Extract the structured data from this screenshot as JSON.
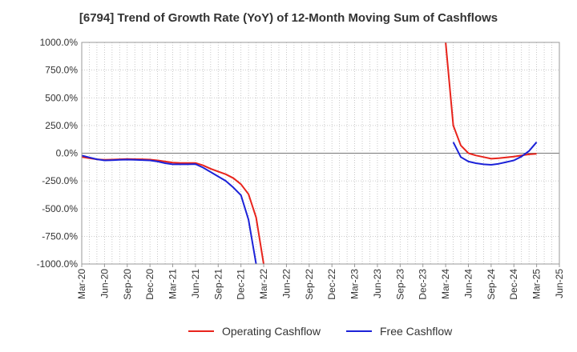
{
  "chart_data": {
    "type": "line",
    "title": "[6794]  Trend of Growth Rate (YoY) of 12-Month Moving Sum of Cashflows",
    "xlabel": "",
    "ylabel": "",
    "ylim": [
      -1000,
      1000
    ],
    "y_ticks": [
      1000,
      750,
      500,
      250,
      0,
      -250,
      -500,
      -750,
      -1000
    ],
    "y_tick_labels": [
      "1000.0%",
      "750.0%",
      "500.0%",
      "250.0%",
      "0.0%",
      "-250.0%",
      "-500.0%",
      "-750.0%",
      "-1000.0%"
    ],
    "x_tick_labels": [
      "Mar-20",
      "Jun-20",
      "Sep-20",
      "Dec-20",
      "Mar-21",
      "Jun-21",
      "Sep-21",
      "Dec-21",
      "Mar-22",
      "Jun-22",
      "Sep-22",
      "Dec-22",
      "Mar-23",
      "Jun-23",
      "Sep-23",
      "Dec-23",
      "Mar-24",
      "Jun-24",
      "Sep-24",
      "Dec-24",
      "Mar-25",
      "Jun-25"
    ],
    "grid": true,
    "legend_position": "bottom",
    "series": [
      {
        "name": "Operating Cashflow",
        "color": "#e8241c",
        "points": [
          {
            "x": "Mar-20",
            "y": -35
          },
          {
            "x": "Apr-20",
            "y": -45
          },
          {
            "x": "May-20",
            "y": -55
          },
          {
            "x": "Jun-20",
            "y": -60
          },
          {
            "x": "Jul-20",
            "y": -58
          },
          {
            "x": "Aug-20",
            "y": -55
          },
          {
            "x": "Sep-20",
            "y": -52
          },
          {
            "x": "Oct-20",
            "y": -54
          },
          {
            "x": "Nov-20",
            "y": -55
          },
          {
            "x": "Dec-20",
            "y": -58
          },
          {
            "x": "Jan-21",
            "y": -65
          },
          {
            "x": "Feb-21",
            "y": -75
          },
          {
            "x": "Mar-21",
            "y": -85
          },
          {
            "x": "Apr-21",
            "y": -88
          },
          {
            "x": "May-21",
            "y": -88
          },
          {
            "x": "Jun-21",
            "y": -88
          },
          {
            "x": "Jul-21",
            "y": -110
          },
          {
            "x": "Aug-21",
            "y": -140
          },
          {
            "x": "Sep-21",
            "y": -165
          },
          {
            "x": "Oct-21",
            "y": -190
          },
          {
            "x": "Nov-21",
            "y": -225
          },
          {
            "x": "Dec-21",
            "y": -280
          },
          {
            "x": "Jan-22",
            "y": -370
          },
          {
            "x": "Feb-22",
            "y": -580
          },
          {
            "x": "Mar-22",
            "y": -1000
          },
          {
            "x": "Mar-24",
            "y": 1000
          },
          {
            "x": "Apr-24",
            "y": 250
          },
          {
            "x": "May-24",
            "y": 70
          },
          {
            "x": "Jun-24",
            "y": 0
          },
          {
            "x": "Jul-24",
            "y": -20
          },
          {
            "x": "Aug-24",
            "y": -35
          },
          {
            "x": "Sep-24",
            "y": -50
          },
          {
            "x": "Oct-24",
            "y": -45
          },
          {
            "x": "Nov-24",
            "y": -38
          },
          {
            "x": "Dec-24",
            "y": -30
          },
          {
            "x": "Jan-25",
            "y": -20
          },
          {
            "x": "Feb-25",
            "y": -10
          },
          {
            "x": "Mar-25",
            "y": -5
          }
        ]
      },
      {
        "name": "Free Cashflow",
        "color": "#1c22d8",
        "points": [
          {
            "x": "Mar-20",
            "y": -20
          },
          {
            "x": "Apr-20",
            "y": -38
          },
          {
            "x": "May-20",
            "y": -55
          },
          {
            "x": "Jun-20",
            "y": -65
          },
          {
            "x": "Jul-20",
            "y": -63
          },
          {
            "x": "Aug-20",
            "y": -60
          },
          {
            "x": "Sep-20",
            "y": -58
          },
          {
            "x": "Oct-20",
            "y": -60
          },
          {
            "x": "Nov-20",
            "y": -62
          },
          {
            "x": "Dec-20",
            "y": -65
          },
          {
            "x": "Jan-21",
            "y": -75
          },
          {
            "x": "Feb-21",
            "y": -90
          },
          {
            "x": "Mar-21",
            "y": -100
          },
          {
            "x": "Apr-21",
            "y": -100
          },
          {
            "x": "May-21",
            "y": -100
          },
          {
            "x": "Jun-21",
            "y": -98
          },
          {
            "x": "Jul-21",
            "y": -130
          },
          {
            "x": "Aug-21",
            "y": -170
          },
          {
            "x": "Sep-21",
            "y": -210
          },
          {
            "x": "Oct-21",
            "y": -250
          },
          {
            "x": "Nov-21",
            "y": -310
          },
          {
            "x": "Dec-21",
            "y": -380
          },
          {
            "x": "Jan-22",
            "y": -600
          },
          {
            "x": "Feb-22",
            "y": -1000
          },
          {
            "x": "Apr-24",
            "y": 100
          },
          {
            "x": "May-24",
            "y": -35
          },
          {
            "x": "Jun-24",
            "y": -75
          },
          {
            "x": "Jul-24",
            "y": -90
          },
          {
            "x": "Aug-24",
            "y": -100
          },
          {
            "x": "Sep-24",
            "y": -105
          },
          {
            "x": "Oct-24",
            "y": -95
          },
          {
            "x": "Nov-24",
            "y": -80
          },
          {
            "x": "Dec-24",
            "y": -65
          },
          {
            "x": "Jan-25",
            "y": -30
          },
          {
            "x": "Feb-25",
            "y": 20
          },
          {
            "x": "Mar-25",
            "y": 100
          }
        ]
      }
    ]
  }
}
